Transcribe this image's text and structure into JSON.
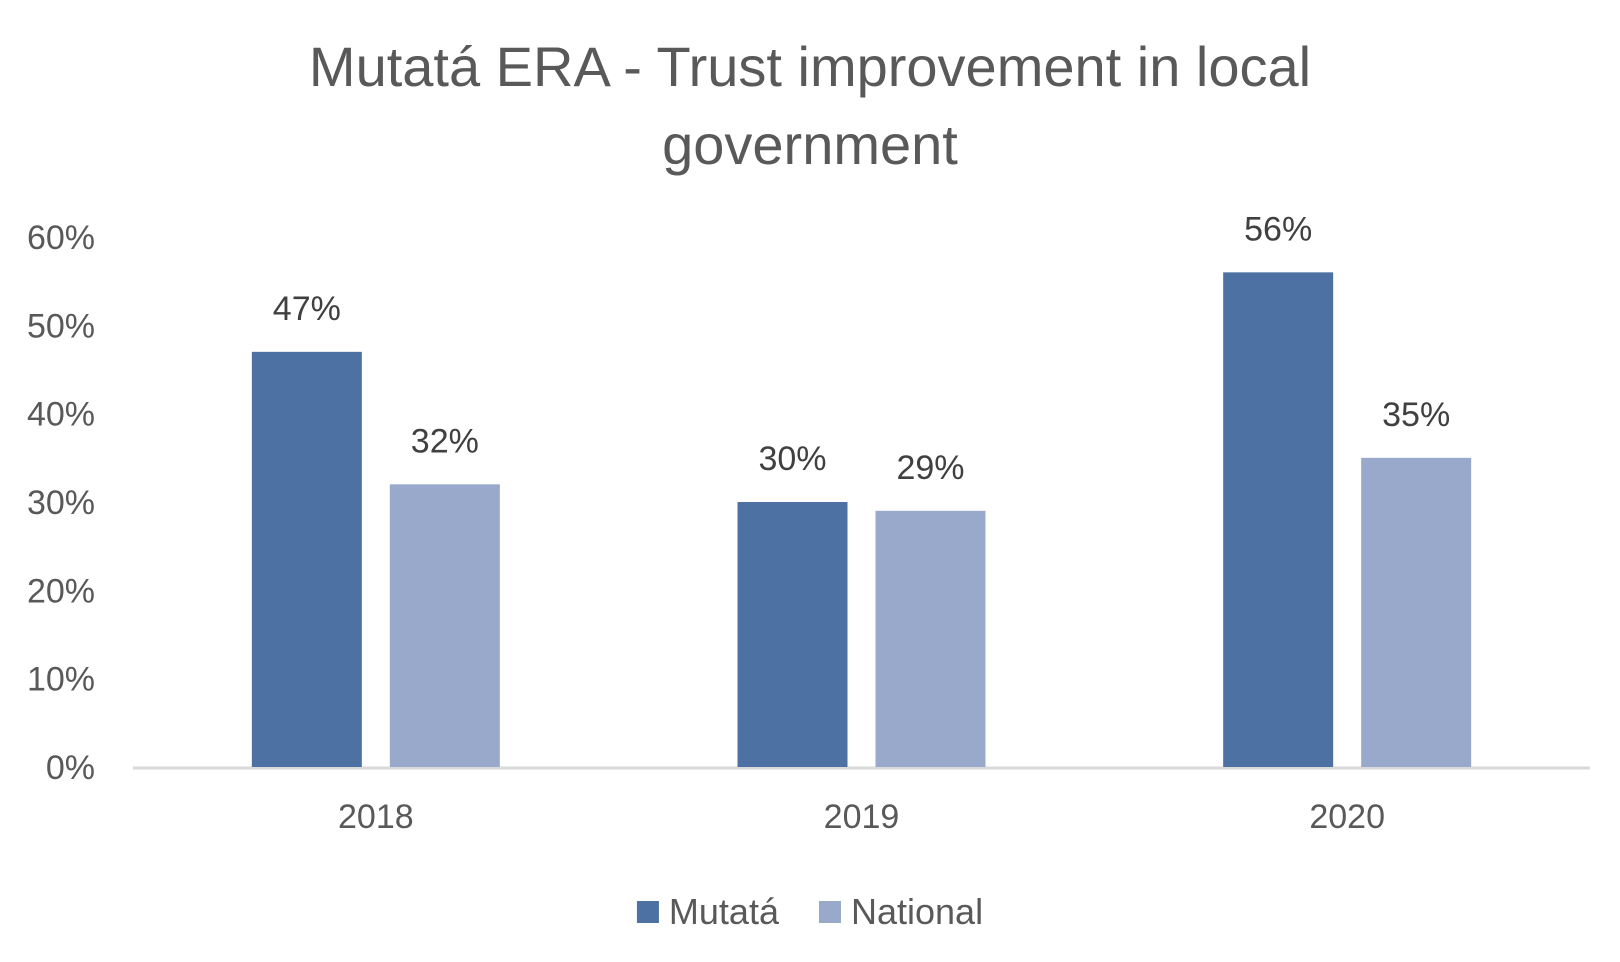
{
  "chart_data": {
    "type": "bar",
    "title": [
      "Mutatá ERA - Trust improvement in local",
      "government"
    ],
    "categories": [
      "2018",
      "2019",
      "2020"
    ],
    "series": [
      {
        "name": "Mutatá",
        "values": [
          47,
          30,
          56
        ],
        "labels": [
          "47%",
          "30%",
          "56%"
        ],
        "color": "#4e71a3"
      },
      {
        "name": "National",
        "values": [
          32,
          29,
          35
        ],
        "labels": [
          "32%",
          "29%",
          "35%"
        ],
        "color": "#98a9cc"
      }
    ],
    "ylim": [
      0,
      60
    ],
    "yticks": [
      "0%",
      "10%",
      "20%",
      "30%",
      "40%",
      "50%",
      "60%"
    ],
    "xlabel": "",
    "ylabel": "",
    "grid": false,
    "legend": "bottom",
    "axis_color": "#d9d9d9"
  }
}
